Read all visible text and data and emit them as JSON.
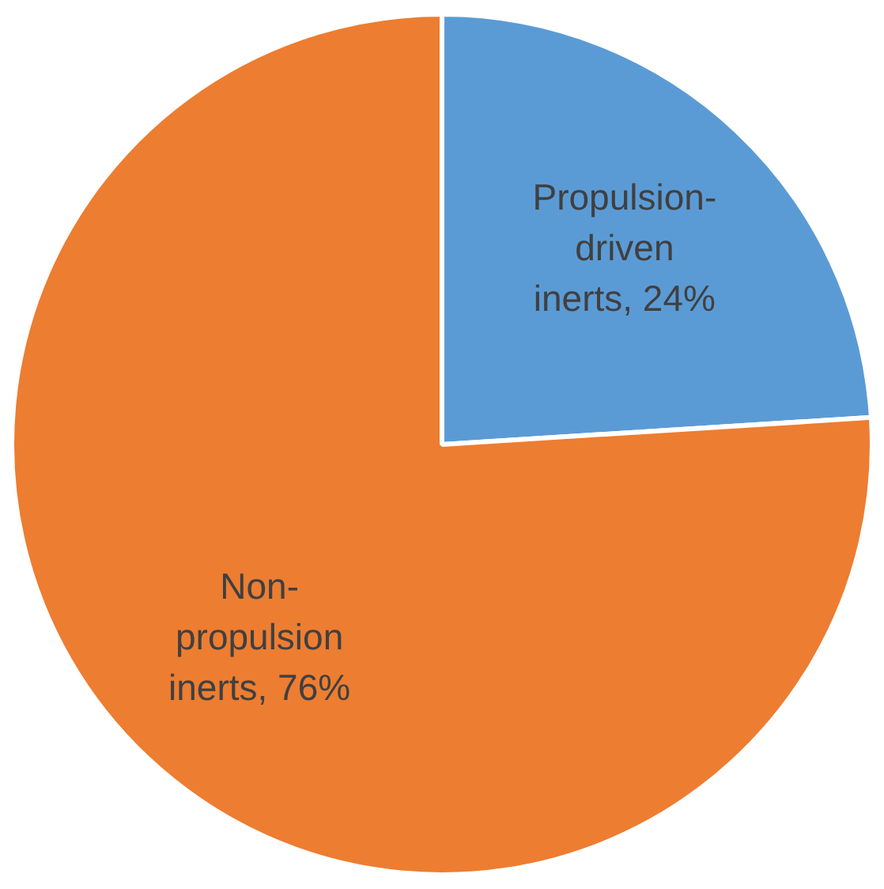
{
  "chart_data": {
    "type": "pie",
    "categories": [
      "Propulsion-driven inerts",
      "Non-propulsion inerts"
    ],
    "values": [
      24,
      76
    ],
    "colors": [
      "#5b9bd5",
      "#ed7d31"
    ],
    "value_labels": [
      "24%",
      "76%"
    ],
    "legend": false
  }
}
